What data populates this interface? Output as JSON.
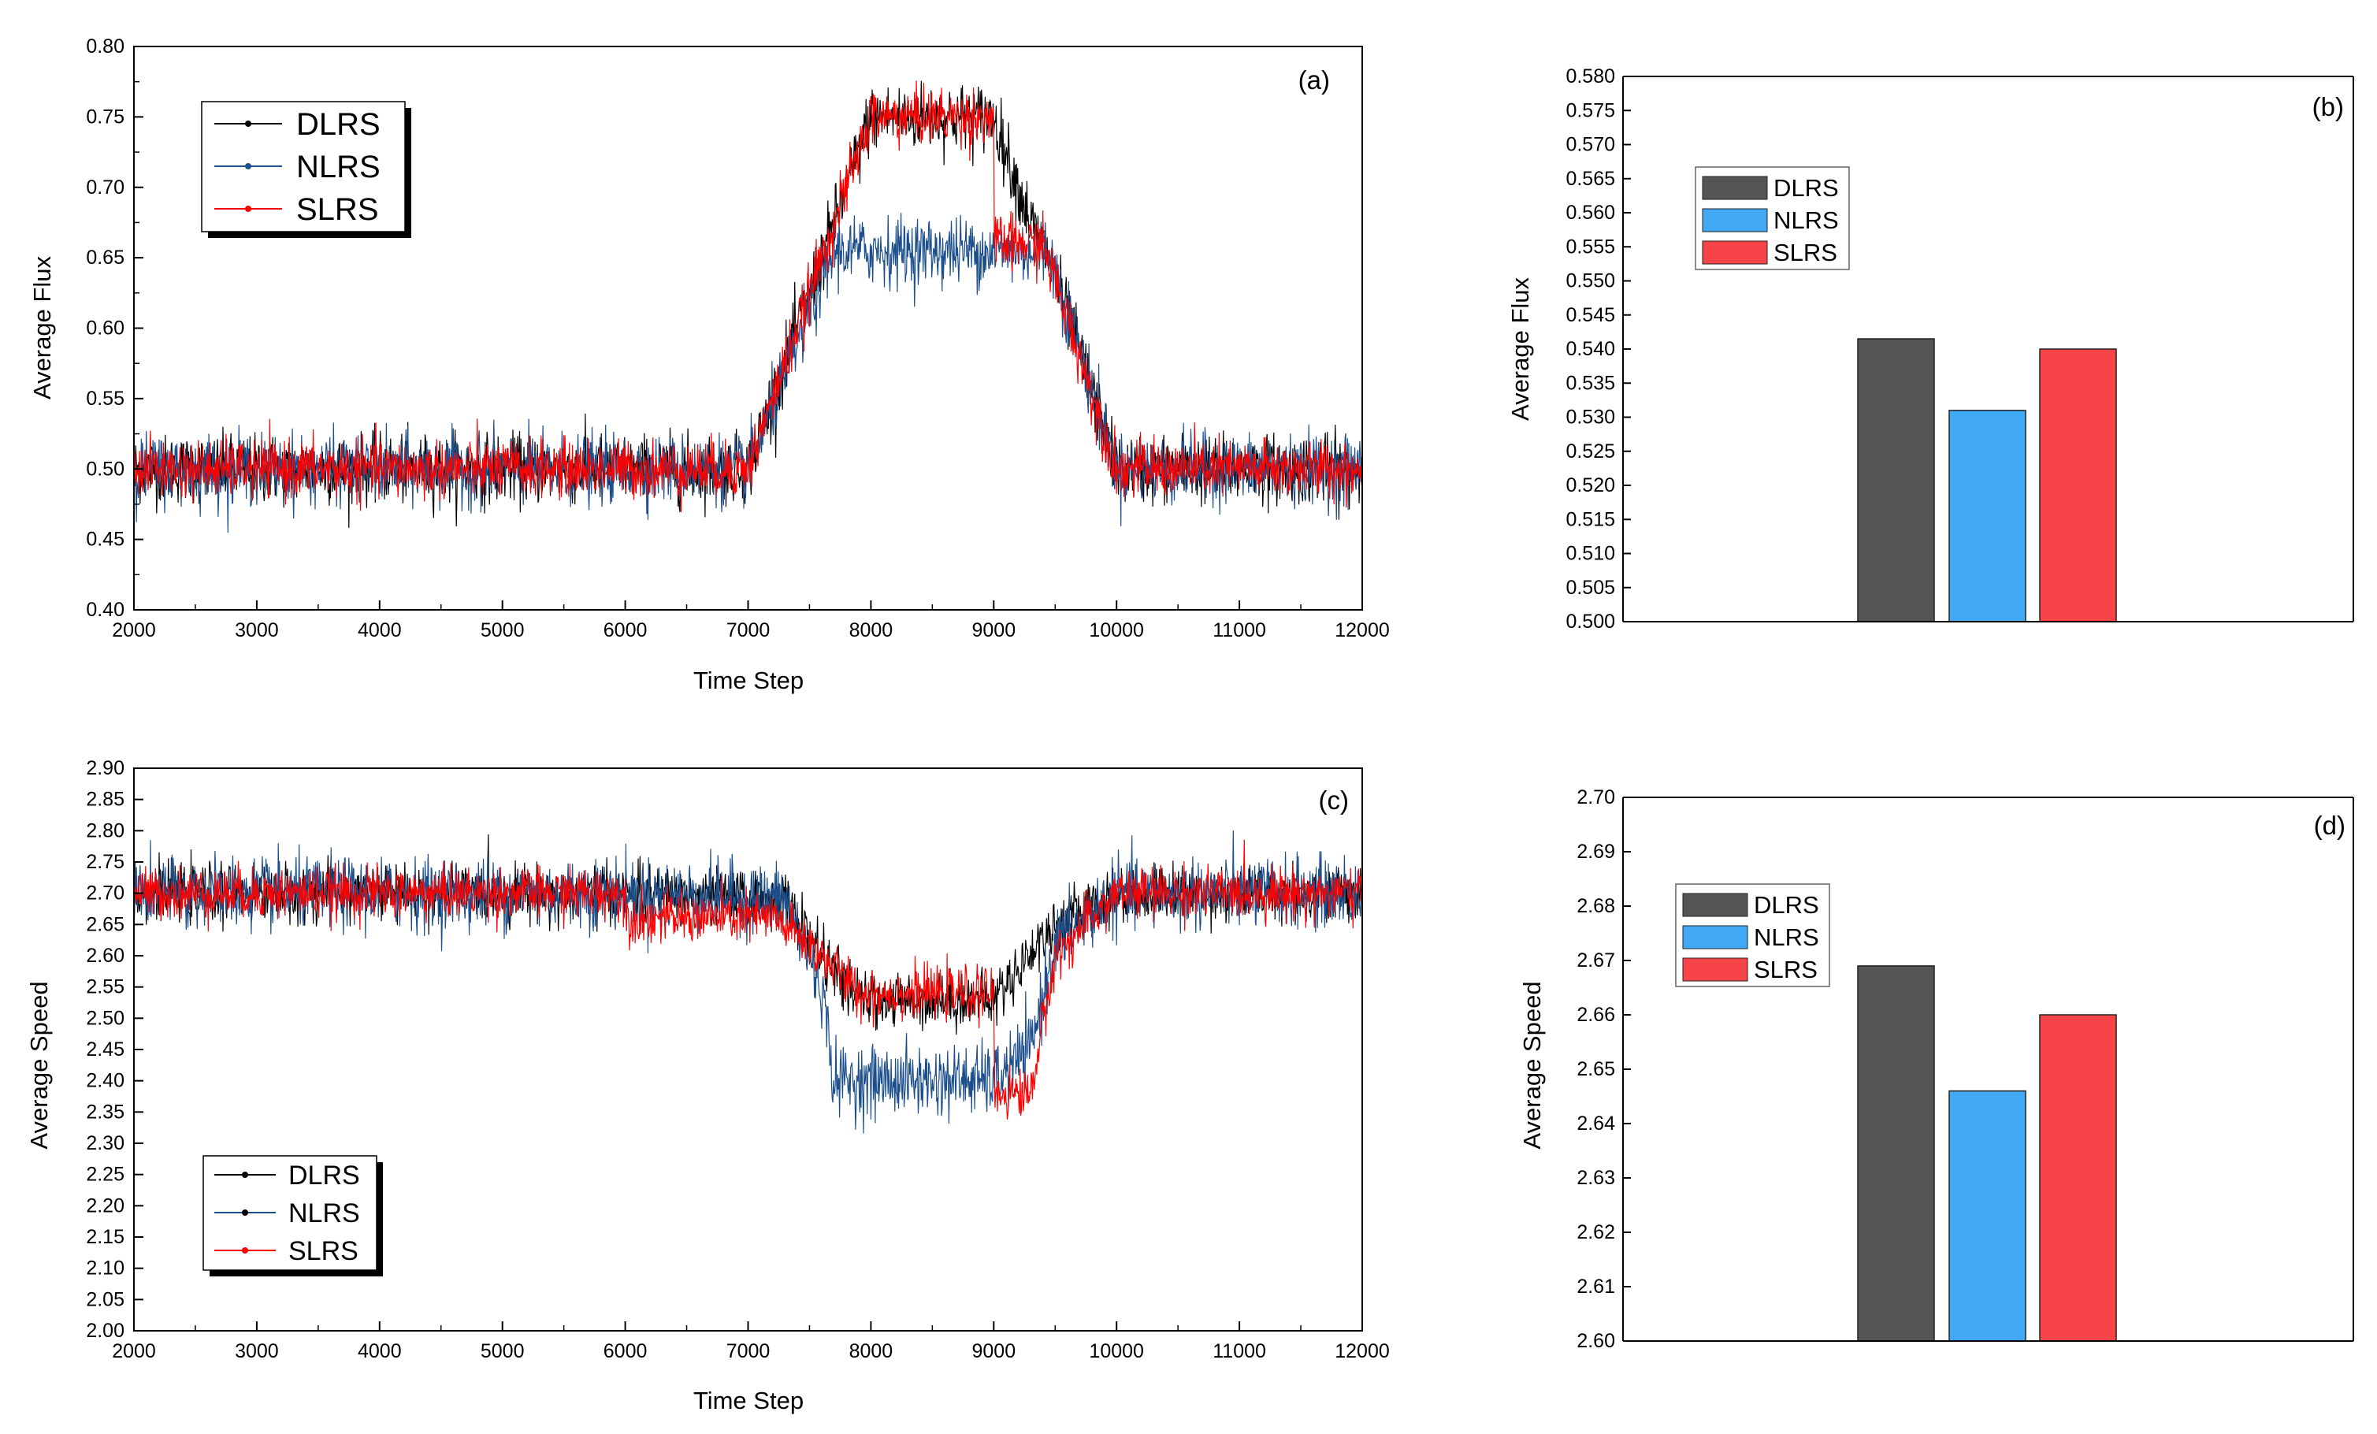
{
  "chart_data": [
    {
      "panel": "(a)",
      "type": "line",
      "xlabel": "Time Step",
      "ylabel": "Average Flux",
      "xlim": [
        2000,
        12000
      ],
      "ylim": [
        0.4,
        0.8
      ],
      "xticks": [
        "2000",
        "3000",
        "4000",
        "5000",
        "6000",
        "7000",
        "8000",
        "9000",
        "10000",
        "11000",
        "12000"
      ],
      "yticks": [
        "0.40",
        "0.45",
        "0.50",
        "0.55",
        "0.60",
        "0.65",
        "0.70",
        "0.75",
        "0.80"
      ],
      "legend": [
        "DLRS",
        "NLRS",
        "SLRS"
      ],
      "series": [
        {
          "name": "DLRS",
          "color": "#000000",
          "noise": 0.012,
          "points": [
            [
              2000,
              0.5
            ],
            [
              7000,
              0.5
            ],
            [
              8000,
              0.75
            ],
            [
              9000,
              0.75
            ],
            [
              9300,
              0.675
            ],
            [
              9450,
              0.65
            ],
            [
              10000,
              0.5
            ],
            [
              12000,
              0.5
            ]
          ]
        },
        {
          "name": "NLRS",
          "color": "#1c4f8c",
          "noise": 0.012,
          "points": [
            [
              2000,
              0.5
            ],
            [
              7000,
              0.5
            ],
            [
              7700,
              0.655
            ],
            [
              9000,
              0.655
            ],
            [
              9450,
              0.655
            ],
            [
              10000,
              0.5
            ],
            [
              12000,
              0.5
            ]
          ]
        },
        {
          "name": "SLRS",
          "color": "#ff0000",
          "noise": 0.01,
          "points": [
            [
              2000,
              0.5
            ],
            [
              7000,
              0.5
            ],
            [
              8000,
              0.75
            ],
            [
              9000,
              0.75
            ],
            [
              9000,
              0.66
            ],
            [
              9400,
              0.66
            ],
            [
              10000,
              0.5
            ],
            [
              12000,
              0.5
            ]
          ]
        }
      ]
    },
    {
      "panel": "(b)",
      "type": "bar",
      "xlabel": "",
      "ylabel": "Average Flux",
      "ylim": [
        0.5,
        0.58
      ],
      "yticks": [
        "0.500",
        "0.505",
        "0.510",
        "0.515",
        "0.520",
        "0.525",
        "0.530",
        "0.535",
        "0.540",
        "0.545",
        "0.550",
        "0.555",
        "0.560",
        "0.565",
        "0.570",
        "0.575",
        "0.580"
      ],
      "categories": [
        "DLRS",
        "NLRS",
        "SLRS"
      ],
      "values": [
        0.5415,
        0.531,
        0.54
      ],
      "colors": [
        "#555555",
        "#41a9f4",
        "#f64448"
      ]
    },
    {
      "panel": "(c)",
      "type": "line",
      "xlabel": "Time Step",
      "ylabel": "Average Speed",
      "xlim": [
        2000,
        12000
      ],
      "ylim": [
        2.0,
        2.9
      ],
      "xticks": [
        "2000",
        "3000",
        "4000",
        "5000",
        "6000",
        "7000",
        "8000",
        "9000",
        "10000",
        "11000",
        "12000"
      ],
      "yticks": [
        "2.00",
        "2.05",
        "2.10",
        "2.15",
        "2.20",
        "2.25",
        "2.30",
        "2.35",
        "2.40",
        "2.45",
        "2.50",
        "2.55",
        "2.60",
        "2.65",
        "2.70",
        "2.75",
        "2.80",
        "2.85",
        "2.90"
      ],
      "legend": [
        "DLRS",
        "NLRS",
        "SLRS"
      ],
      "series": [
        {
          "name": "DLRS",
          "color": "#000000",
          "noise": 0.022,
          "points": [
            [
              2000,
              2.7
            ],
            [
              6000,
              2.7
            ],
            [
              7300,
              2.69
            ],
            [
              7600,
              2.6
            ],
            [
              7900,
              2.53
            ],
            [
              9000,
              2.53
            ],
            [
              9400,
              2.63
            ],
            [
              9700,
              2.67
            ],
            [
              10000,
              2.7
            ],
            [
              12000,
              2.7
            ]
          ]
        },
        {
          "name": "NLRS",
          "color": "#1c4f8c",
          "noise": 0.028,
          "points": [
            [
              2000,
              2.7
            ],
            [
              6000,
              2.7
            ],
            [
              7300,
              2.69
            ],
            [
              7600,
              2.55
            ],
            [
              7700,
              2.4
            ],
            [
              9000,
              2.4
            ],
            [
              9300,
              2.45
            ],
            [
              9500,
              2.62
            ],
            [
              10000,
              2.7
            ],
            [
              12000,
              2.7
            ]
          ]
        },
        {
          "name": "SLRS",
          "color": "#ff0000",
          "noise": 0.02,
          "points": [
            [
              2000,
              2.7
            ],
            [
              6000,
              2.7
            ],
            [
              6000,
              2.66
            ],
            [
              7200,
              2.66
            ],
            [
              7500,
              2.62
            ],
            [
              7900,
              2.54
            ],
            [
              9000,
              2.54
            ],
            [
              9000,
              2.38
            ],
            [
              9300,
              2.38
            ],
            [
              9500,
              2.6
            ],
            [
              10000,
              2.7
            ],
            [
              12000,
              2.7
            ]
          ]
        }
      ]
    },
    {
      "panel": "(d)",
      "type": "bar",
      "xlabel": "",
      "ylabel": "Average Speed",
      "ylim": [
        2.6,
        2.7
      ],
      "yticks": [
        "2.60",
        "2.61",
        "2.62",
        "2.63",
        "2.64",
        "2.65",
        "2.66",
        "2.67",
        "2.68",
        "2.69",
        "2.70"
      ],
      "categories": [
        "DLRS",
        "NLRS",
        "SLRS"
      ],
      "values": [
        2.669,
        2.646,
        2.66
      ],
      "colors": [
        "#555555",
        "#41a9f4",
        "#f64448"
      ]
    }
  ]
}
